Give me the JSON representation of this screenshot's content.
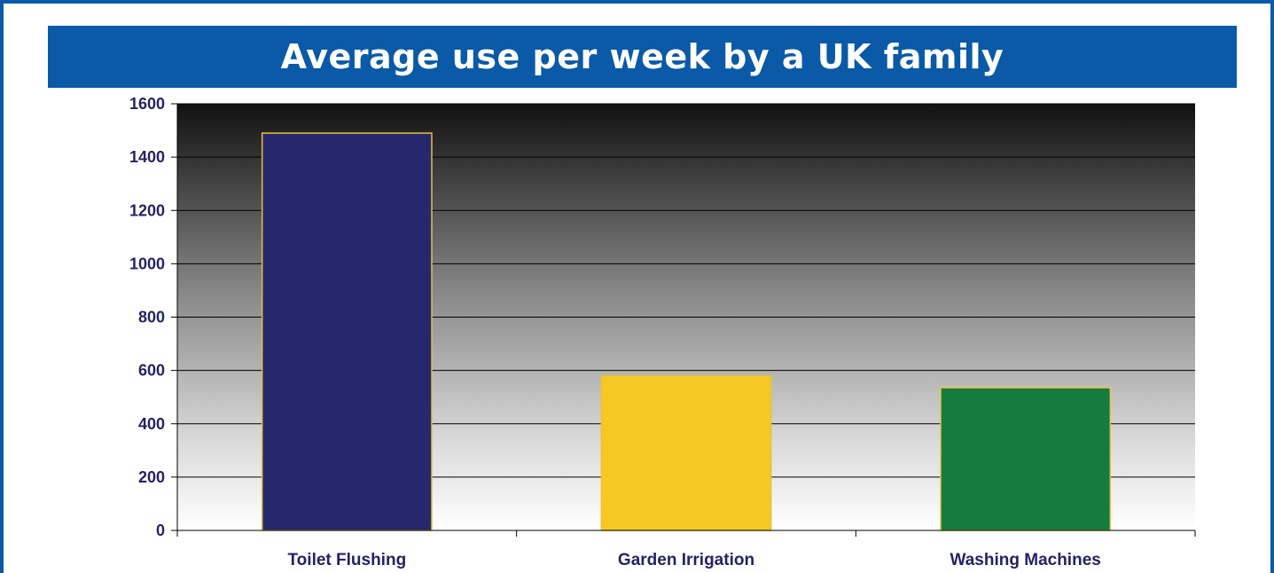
{
  "chart_data": {
    "type": "bar",
    "title": "Average use per week by a UK family",
    "categories": [
      "Toilet Flushing",
      "Garden Irrigation",
      "Washing Machines"
    ],
    "values": [
      1490,
      580,
      535
    ],
    "bar_colors": [
      "#27276e",
      "#f5c823",
      "#137c3e"
    ],
    "ylim": [
      0,
      1600
    ],
    "yticks": [
      0,
      200,
      400,
      600,
      800,
      1000,
      1200,
      1400,
      1600
    ],
    "grid": true,
    "legend": "none"
  },
  "colors": {
    "frame": "#0a5aa8",
    "banner": "#0a5aa8",
    "label_text": "#232365",
    "bar_outline": "#e8c23a"
  }
}
